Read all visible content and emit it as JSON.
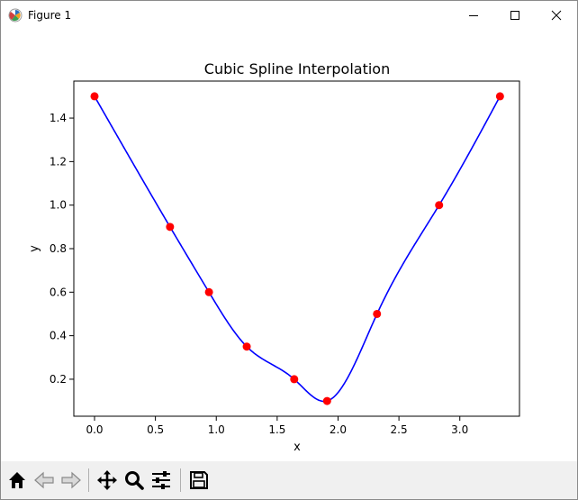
{
  "window": {
    "title": "Figure 1",
    "icons": {
      "app": "matplotlib-figure-icon",
      "minimize": "minimize-icon",
      "maximize": "maximize-icon",
      "close": "close-icon"
    }
  },
  "toolbar": {
    "buttons": [
      {
        "name": "home",
        "icon": "home-icon"
      },
      {
        "name": "back",
        "icon": "arrow-left-icon"
      },
      {
        "name": "forward",
        "icon": "arrow-right-icon"
      },
      {
        "name": "pan",
        "icon": "move-icon"
      },
      {
        "name": "zoom",
        "icon": "magnifier-icon"
      },
      {
        "name": "subplots",
        "icon": "sliders-icon"
      },
      {
        "name": "save",
        "icon": "floppy-disk-icon"
      }
    ]
  },
  "chart_data": {
    "type": "line",
    "title": "Cubic Spline Interpolation",
    "xlabel": "x",
    "ylabel": "y",
    "xlim": [
      -0.17,
      3.49
    ],
    "ylim": [
      0.03,
      1.57
    ],
    "xticks": [
      0.0,
      0.5,
      1.0,
      1.5,
      2.0,
      2.5,
      3.0
    ],
    "xtick_labels": [
      "0.0",
      "0.5",
      "1.0",
      "1.5",
      "2.0",
      "2.5",
      "3.0"
    ],
    "yticks": [
      0.2,
      0.4,
      0.6,
      0.8,
      1.0,
      1.2,
      1.4
    ],
    "ytick_labels": [
      "0.2",
      "0.4",
      "0.6",
      "0.8",
      "1.0",
      "1.2",
      "1.4"
    ],
    "grid": false,
    "series": [
      {
        "kind": "spline",
        "color": "#0000ff",
        "x": [
          0.0,
          0.62,
          0.94,
          1.25,
          1.64,
          1.91,
          2.32,
          2.83,
          3.33
        ],
        "y": [
          1.5,
          0.9,
          0.6,
          0.35,
          0.2,
          0.1,
          0.5,
          1.0,
          1.5
        ]
      },
      {
        "kind": "points",
        "color": "#ff0000",
        "x": [
          0.0,
          0.62,
          0.94,
          1.25,
          1.64,
          1.91,
          2.32,
          2.83,
          3.33
        ],
        "y": [
          1.5,
          0.9,
          0.6,
          0.35,
          0.2,
          0.1,
          0.5,
          1.0,
          1.5
        ]
      }
    ]
  }
}
